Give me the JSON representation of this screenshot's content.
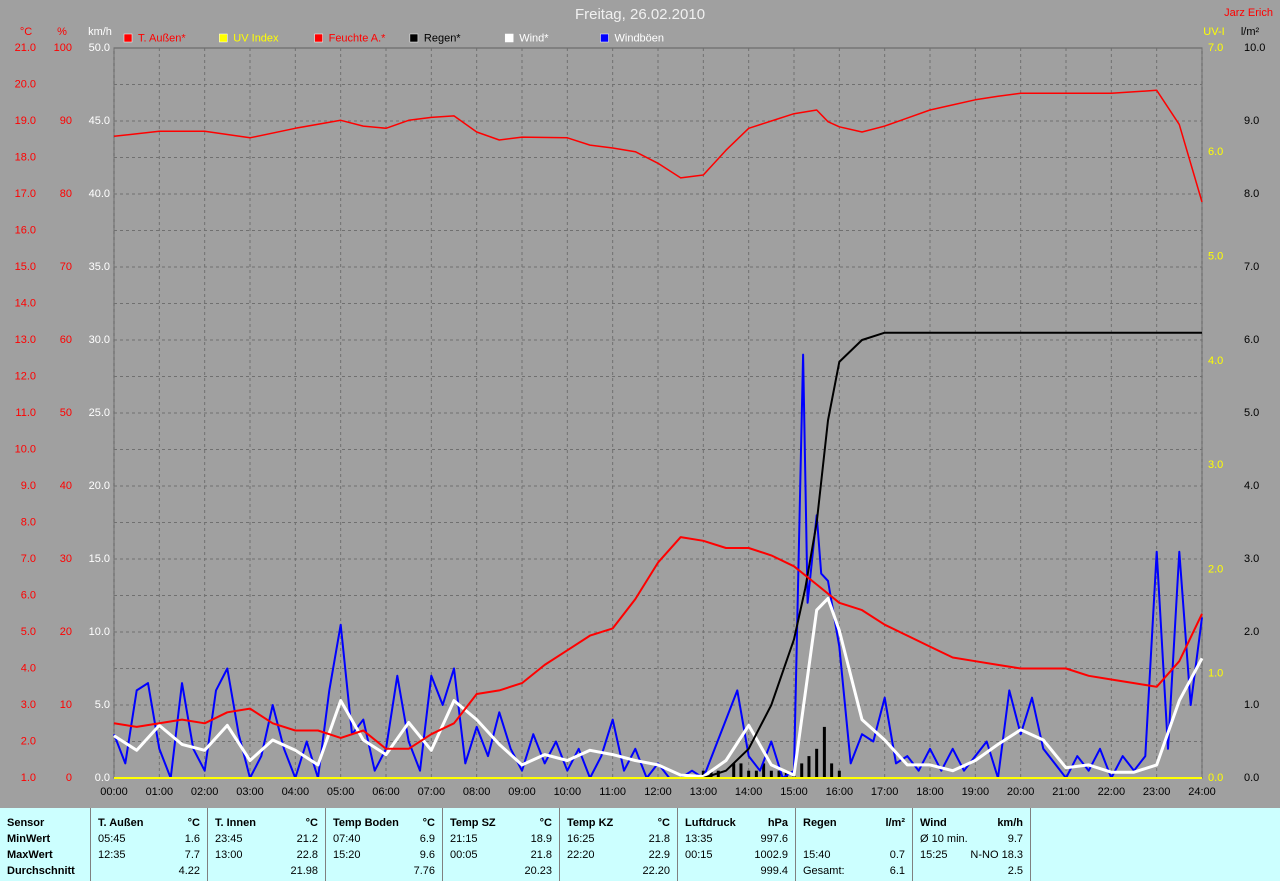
{
  "title": "Freitag, 26.02.2010",
  "author": "Jarz Erich",
  "chart_data": {
    "type": "line",
    "grid": true,
    "xlim": [
      0,
      24
    ],
    "xticks": [
      {
        "value": 0,
        "label": "00:00"
      },
      {
        "value": 1,
        "label": "01:00"
      },
      {
        "value": 2,
        "label": "02:00"
      },
      {
        "value": 3,
        "label": "03:00"
      },
      {
        "value": 4,
        "label": "04:00"
      },
      {
        "value": 5,
        "label": "05:00"
      },
      {
        "value": 6,
        "label": "06:00"
      },
      {
        "value": 7,
        "label": "07:00"
      },
      {
        "value": 8,
        "label": "08:00"
      },
      {
        "value": 9,
        "label": "09:00"
      },
      {
        "value": 10,
        "label": "10:00"
      },
      {
        "value": 11,
        "label": "11:00"
      },
      {
        "value": 12,
        "label": "12:00"
      },
      {
        "value": 13,
        "label": "13:00"
      },
      {
        "value": 14,
        "label": "14:00"
      },
      {
        "value": 15,
        "label": "15:00"
      },
      {
        "value": 16,
        "label": "16:00"
      },
      {
        "value": 17,
        "label": "17:00"
      },
      {
        "value": 18,
        "label": "18:00"
      },
      {
        "value": 19,
        "label": "19:00"
      },
      {
        "value": 20,
        "label": "20:00"
      },
      {
        "value": 21,
        "label": "21:00"
      },
      {
        "value": 22,
        "label": "22:00"
      },
      {
        "value": 23,
        "label": "23:00"
      },
      {
        "value": 24,
        "label": "24:00"
      }
    ],
    "axes": [
      {
        "label": "°C",
        "color": "#ff0000",
        "side": "left",
        "lim": [
          1,
          21
        ],
        "ticks": [
          {
            "value": 1,
            "label": "1.0"
          },
          {
            "value": 2,
            "label": "2.0"
          },
          {
            "value": 3,
            "label": "3.0"
          },
          {
            "value": 4,
            "label": "4.0"
          },
          {
            "value": 5,
            "label": "5.0"
          },
          {
            "value": 6,
            "label": "6.0"
          },
          {
            "value": 7,
            "label": "7.0"
          },
          {
            "value": 8,
            "label": "8.0"
          },
          {
            "value": 9,
            "label": "9.0"
          },
          {
            "value": 10,
            "label": "10.0"
          },
          {
            "value": 11,
            "label": "11.0"
          },
          {
            "value": 12,
            "label": "12.0"
          },
          {
            "value": 13,
            "label": "13.0"
          },
          {
            "value": 14,
            "label": "14.0"
          },
          {
            "value": 15,
            "label": "15.0"
          },
          {
            "value": 16,
            "label": "16.0"
          },
          {
            "value": 17,
            "label": "17.0"
          },
          {
            "value": 18,
            "label": "18.0"
          },
          {
            "value": 19,
            "label": "19.0"
          },
          {
            "value": 20,
            "label": "20.0"
          },
          {
            "value": 21,
            "label": "21.0"
          }
        ]
      },
      {
        "label": "%",
        "color": "#ff0000",
        "side": "left",
        "lim": [
          0,
          100
        ],
        "ticks": [
          0,
          10,
          20,
          30,
          40,
          50,
          60,
          70,
          80,
          90,
          100
        ]
      },
      {
        "label": "km/h",
        "color": "#ffffff",
        "side": "left",
        "lim": [
          0,
          50
        ],
        "ticks": [
          {
            "value": 0,
            "label": "0.0"
          },
          {
            "value": 5,
            "label": "5.0"
          },
          {
            "value": 10,
            "label": "10.0"
          },
          {
            "value": 15,
            "label": "15.0"
          },
          {
            "value": 20,
            "label": "20.0"
          },
          {
            "value": 25,
            "label": "25.0"
          },
          {
            "value": 30,
            "label": "30.0"
          },
          {
            "value": 35,
            "label": "35.0"
          },
          {
            "value": 40,
            "label": "40.0"
          },
          {
            "value": 45,
            "label": "45.0"
          },
          {
            "value": 50,
            "label": "50.0"
          }
        ]
      },
      {
        "label": "UV-I",
        "color": "#ffff00",
        "side": "right",
        "lim": [
          0,
          7
        ],
        "ticks": [
          {
            "value": 0,
            "label": "0.0"
          },
          {
            "value": 1,
            "label": "1.0"
          },
          {
            "value": 2,
            "label": "2.0"
          },
          {
            "value": 3,
            "label": "3.0"
          },
          {
            "value": 4,
            "label": "4.0"
          },
          {
            "value": 5,
            "label": "5.0"
          },
          {
            "value": 6,
            "label": "6.0"
          },
          {
            "value": 7,
            "label": "7.0"
          }
        ]
      },
      {
        "label": "l/m²",
        "color": "#000000",
        "side": "right",
        "lim": [
          0,
          10
        ],
        "ticks": [
          {
            "value": 0,
            "label": "0.0"
          },
          {
            "value": 1,
            "label": "1.0"
          },
          {
            "value": 2,
            "label": "2.0"
          },
          {
            "value": 3,
            "label": "3.0"
          },
          {
            "value": 4,
            "label": "4.0"
          },
          {
            "value": 5,
            "label": "5.0"
          },
          {
            "value": 6,
            "label": "6.0"
          },
          {
            "value": 7,
            "label": "7.0"
          },
          {
            "value": 8,
            "label": "8.0"
          },
          {
            "value": 9,
            "label": "9.0"
          },
          {
            "value": 10,
            "label": "10.0"
          }
        ]
      }
    ],
    "series": [
      {
        "name": "T. Außen*",
        "color": "#ff0000",
        "axis": 0,
        "x": [
          0,
          0.5,
          1,
          1.5,
          2,
          2.5,
          3,
          3.5,
          4,
          4.5,
          5,
          5.5,
          6,
          6.5,
          7,
          7.5,
          8,
          8.5,
          9,
          9.5,
          10,
          10.5,
          11,
          11.5,
          12,
          12.5,
          13,
          13.5,
          14,
          14.5,
          15,
          15.5,
          16,
          16.5,
          17,
          17.5,
          18,
          18.5,
          19,
          19.5,
          20,
          20.5,
          21,
          21.5,
          22,
          22.5,
          23,
          23.5,
          24
        ],
        "values": [
          2.5,
          2.4,
          2.5,
          2.6,
          2.5,
          2.8,
          2.9,
          2.5,
          2.3,
          2.3,
          2.1,
          2.3,
          1.8,
          1.8,
          2.2,
          2.5,
          3.3,
          3.4,
          3.6,
          4.1,
          4.5,
          4.9,
          5.1,
          5.9,
          6.9,
          7.6,
          7.5,
          7.3,
          7.3,
          7.1,
          6.8,
          6.3,
          5.8,
          5.6,
          5.2,
          4.9,
          4.6,
          4.3,
          4.2,
          4.1,
          4.0,
          4.0,
          4.0,
          3.8,
          3.7,
          3.6,
          3.5,
          4.2,
          5.5
        ]
      },
      {
        "name": "UV Index",
        "color": "#ffff00",
        "axis": 3,
        "x": [
          0,
          24
        ],
        "values": [
          0,
          0
        ]
      },
      {
        "name": "Feuchte A.*",
        "color": "#ff0000",
        "axis": 1,
        "x": [
          0,
          1,
          2,
          3,
          4,
          5,
          5.5,
          6,
          6.5,
          7,
          7.5,
          8,
          8.5,
          9,
          10,
          10.5,
          11,
          11.5,
          12,
          12.5,
          13,
          13.5,
          14,
          14.5,
          15,
          15.5,
          15.75,
          16,
          16.5,
          17,
          17.5,
          18,
          18.5,
          19,
          19.5,
          20,
          21,
          22,
          23,
          23.5,
          24
        ],
        "values": [
          87.9,
          88.6,
          88.6,
          87.7,
          89.0,
          90.1,
          89.3,
          89.0,
          90.1,
          90.5,
          90.7,
          88.5,
          87.4,
          87.8,
          87.7,
          86.7,
          86.3,
          85.8,
          84.2,
          82.2,
          82.6,
          86.0,
          89.0,
          90.0,
          91.0,
          91.5,
          89.9,
          89.2,
          88.5,
          89.3,
          90.4,
          91.5,
          92.2,
          92.9,
          93.4,
          93.8,
          93.8,
          93.8,
          94.2,
          89.5,
          78.9
        ]
      },
      {
        "name": "Regen*",
        "color": "#000000",
        "axis": 4,
        "x": [
          0,
          13,
          13.5,
          14,
          14.5,
          15,
          15.25,
          15.5,
          15.75,
          16,
          16.5,
          17,
          24
        ],
        "values": [
          0,
          0,
          0.1,
          0.4,
          1.0,
          1.9,
          2.6,
          3.5,
          4.9,
          5.7,
          6.0,
          6.1,
          6.1
        ]
      },
      {
        "name": "Wind*",
        "color": "#ffffff",
        "axis": 2,
        "x": [
          0,
          0.5,
          1,
          1.5,
          2,
          2.5,
          3,
          3.5,
          4,
          4.5,
          5,
          5.5,
          6,
          6.5,
          7,
          7.5,
          8,
          8.5,
          9,
          9.5,
          10,
          10.5,
          11,
          11.5,
          12,
          12.5,
          13,
          13.5,
          14,
          14.5,
          15,
          15.5,
          15.75,
          16,
          16.5,
          17,
          17.5,
          18,
          18.5,
          19,
          19.5,
          20,
          20.5,
          21,
          21.5,
          22,
          22.5,
          23,
          23.5,
          24
        ],
        "values": [
          2.9,
          1.9,
          3.6,
          2.3,
          1.9,
          3.6,
          1.2,
          2.6,
          1.9,
          0.9,
          5.3,
          2.6,
          1.6,
          3.8,
          1.9,
          5.3,
          4.0,
          2.3,
          0.9,
          1.6,
          1.2,
          1.9,
          1.6,
          1.2,
          0.9,
          0.2,
          0.1,
          1.2,
          3.6,
          0.9,
          0.2,
          11.5,
          12.3,
          10.1,
          4.0,
          2.6,
          0.9,
          0.9,
          0.5,
          1.2,
          2.3,
          3.3,
          2.6,
          0.7,
          0.9,
          0.4,
          0.4,
          0.9,
          5.3,
          8.2
        ]
      },
      {
        "name": "Windböen",
        "color": "#0000ff",
        "text_color": "#ffffff",
        "axis": 2,
        "x": [
          0,
          0.25,
          0.5,
          0.75,
          1,
          1.25,
          1.5,
          1.75,
          2,
          2.25,
          2.5,
          2.75,
          3,
          3.25,
          3.5,
          3.75,
          4,
          4.25,
          4.5,
          4.75,
          5,
          5.25,
          5.5,
          5.75,
          6,
          6.25,
          6.5,
          6.75,
          7,
          7.25,
          7.5,
          7.75,
          8,
          8.25,
          8.5,
          8.75,
          9,
          9.25,
          9.5,
          9.75,
          10,
          10.25,
          10.5,
          10.75,
          11,
          11.25,
          11.5,
          11.75,
          12,
          12.25,
          12.5,
          12.75,
          13,
          13.25,
          13.5,
          13.75,
          14,
          14.25,
          14.5,
          14.75,
          15,
          15.2,
          15.3,
          15.5,
          15.6,
          15.75,
          16,
          16.25,
          16.5,
          16.75,
          17,
          17.25,
          17.5,
          17.75,
          18,
          18.25,
          18.5,
          18.75,
          19,
          19.25,
          19.5,
          19.75,
          20,
          20.25,
          20.5,
          20.75,
          21,
          21.25,
          21.5,
          21.75,
          22,
          22.25,
          22.5,
          22.75,
          23,
          23.25,
          23.5,
          23.75,
          24
        ],
        "values": [
          3.0,
          1.0,
          6.0,
          6.5,
          2.0,
          0.0,
          6.5,
          2.0,
          0.5,
          6.0,
          7.5,
          3.0,
          0.0,
          1.5,
          5.0,
          2.0,
          0.0,
          2.5,
          0.0,
          6.0,
          10.5,
          3.0,
          4.0,
          0.5,
          2.0,
          7.0,
          2.5,
          0.5,
          7.0,
          5.0,
          7.5,
          1.0,
          3.5,
          1.5,
          4.5,
          2.0,
          0.5,
          3.0,
          1.0,
          2.5,
          0.5,
          2.0,
          0.0,
          1.5,
          4.0,
          0.5,
          2.0,
          0.0,
          1.0,
          0.0,
          0.0,
          0.5,
          0.0,
          2.0,
          4.0,
          6.0,
          1.5,
          0.5,
          2.5,
          0.0,
          0.5,
          29.0,
          12.0,
          18.0,
          14.0,
          13.5,
          9.0,
          1.0,
          3.0,
          2.5,
          5.5,
          1.0,
          1.5,
          0.5,
          2.0,
          0.5,
          2.0,
          0.5,
          1.5,
          2.5,
          0.0,
          6.0,
          3.0,
          5.5,
          2.0,
          1.0,
          0.0,
          1.5,
          0.5,
          2.0,
          0.0,
          1.5,
          0.5,
          1.5,
          15.5,
          2.0,
          15.5,
          5.0,
          11.0
        ]
      }
    ],
    "rain_bars": {
      "color": "#000000",
      "axis": 4,
      "x": [
        13,
        13.17,
        13.33,
        13.67,
        13.83,
        14,
        14.17,
        14.33,
        14.5,
        14.67,
        14.83,
        15,
        15.17,
        15.33,
        15.5,
        15.67,
        15.83,
        16
      ],
      "values": [
        0.1,
        0.1,
        0.1,
        0.2,
        0.2,
        0.1,
        0.1,
        0.2,
        0.1,
        0.1,
        0.1,
        0.1,
        0.2,
        0.3,
        0.4,
        0.7,
        0.2,
        0.1
      ]
    }
  },
  "table": {
    "row_labels": [
      "Sensor",
      "MinWert",
      "MaxWert",
      "Durchschnitt"
    ],
    "columns": [
      {
        "header": "T. Außen",
        "unit": "°C",
        "min": [
          "05:45",
          "1.6"
        ],
        "max": [
          "12:35",
          "7.7"
        ],
        "avg": [
          "4.22"
        ]
      },
      {
        "header": "T. Innen",
        "unit": "°C",
        "min": [
          "23:45",
          "21.2"
        ],
        "max": [
          "13:00",
          "22.8"
        ],
        "avg": [
          "21.98"
        ]
      },
      {
        "header": "Temp Boden",
        "unit": "°C",
        "min": [
          "07:40",
          "6.9"
        ],
        "max": [
          "15:20",
          "9.6"
        ],
        "avg": [
          "7.76"
        ]
      },
      {
        "header": "Temp SZ",
        "unit": "°C",
        "min": [
          "21:15",
          "18.9"
        ],
        "max": [
          "00:05",
          "21.8"
        ],
        "avg": [
          "20.23"
        ]
      },
      {
        "header": "Temp KZ",
        "unit": "°C",
        "min": [
          "16:25",
          "21.8"
        ],
        "max": [
          "22:20",
          "22.9"
        ],
        "avg": [
          "22.20"
        ]
      },
      {
        "header": "Luftdruck",
        "unit": "hPa",
        "min": [
          "13:35",
          "997.6"
        ],
        "max": [
          "00:15",
          "1002.9"
        ],
        "avg": [
          "999.4"
        ]
      },
      {
        "header": "Regen",
        "unit": "l/m²",
        "max": [
          "15:40",
          "0.7"
        ],
        "avg": [
          "Gesamt:",
          "6.1"
        ]
      },
      {
        "header": "Wind",
        "unit": "km/h",
        "min": [
          "Ø 10 min.",
          "9.7"
        ],
        "max": [
          "15:25",
          "N-NO 18.3"
        ],
        "avg": [
          "2.5"
        ]
      }
    ]
  }
}
